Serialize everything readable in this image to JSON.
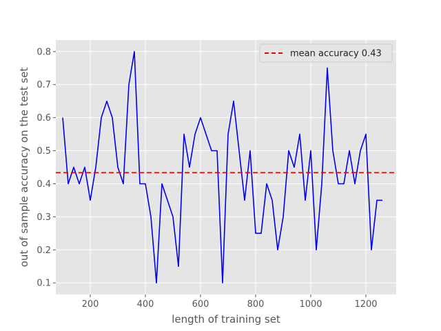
{
  "chart_data": {
    "type": "line",
    "xlabel": "length of training set",
    "ylabel": "out of sample accuracy on the test set",
    "xlim": [
      75,
      1310
    ],
    "ylim": [
      0.065,
      0.835
    ],
    "xticks": [
      200,
      400,
      600,
      800,
      1000,
      1200
    ],
    "yticks": [
      0.1,
      0.2,
      0.3,
      0.4,
      0.5,
      0.6,
      0.7,
      0.8
    ],
    "xtick_labels": [
      "200",
      "400",
      "600",
      "800",
      "1000",
      "1200"
    ],
    "ytick_labels": [
      "0.1",
      "0.2",
      "0.3",
      "0.4",
      "0.5",
      "0.6",
      "0.7",
      "0.8"
    ],
    "grid": true,
    "legend_position": "top-right",
    "series": [
      {
        "style": "solid",
        "color": "#0000ee",
        "x": [
          100,
          120,
          140,
          160,
          180,
          200,
          220,
          240,
          260,
          280,
          300,
          320,
          340,
          360,
          380,
          400,
          420,
          440,
          460,
          480,
          500,
          520,
          540,
          560,
          580,
          600,
          620,
          640,
          660,
          680,
          700,
          720,
          740,
          760,
          780,
          800,
          820,
          840,
          860,
          880,
          900,
          920,
          940,
          960,
          980,
          1000,
          1020,
          1040,
          1060,
          1080,
          1100,
          1120,
          1140,
          1160,
          1180,
          1200,
          1220,
          1240,
          1260
        ],
        "values": [
          0.6,
          0.4,
          0.45,
          0.4,
          0.45,
          0.35,
          0.45,
          0.6,
          0.65,
          0.6,
          0.45,
          0.4,
          0.7,
          0.8,
          0.4,
          0.4,
          0.3,
          0.1,
          0.4,
          0.35,
          0.3,
          0.15,
          0.55,
          0.45,
          0.55,
          0.6,
          0.55,
          0.5,
          0.5,
          0.1,
          0.55,
          0.65,
          0.5,
          0.35,
          0.5,
          0.25,
          0.25,
          0.4,
          0.35,
          0.2,
          0.3,
          0.5,
          0.45,
          0.55,
          0.35,
          0.5,
          0.2,
          0.4,
          0.75,
          0.5,
          0.4,
          0.4,
          0.5,
          0.4,
          0.5,
          0.55,
          0.2,
          0.35,
          0.35
        ]
      },
      {
        "name": "mean accuracy 0.43",
        "style": "dashed",
        "color": "#ee0000",
        "value": 0.4336
      }
    ]
  },
  "colors": {
    "plot_background": "#e5e5e5",
    "grid": "#ffffff",
    "line": "#0000ee",
    "mean_line": "#ee0000"
  }
}
